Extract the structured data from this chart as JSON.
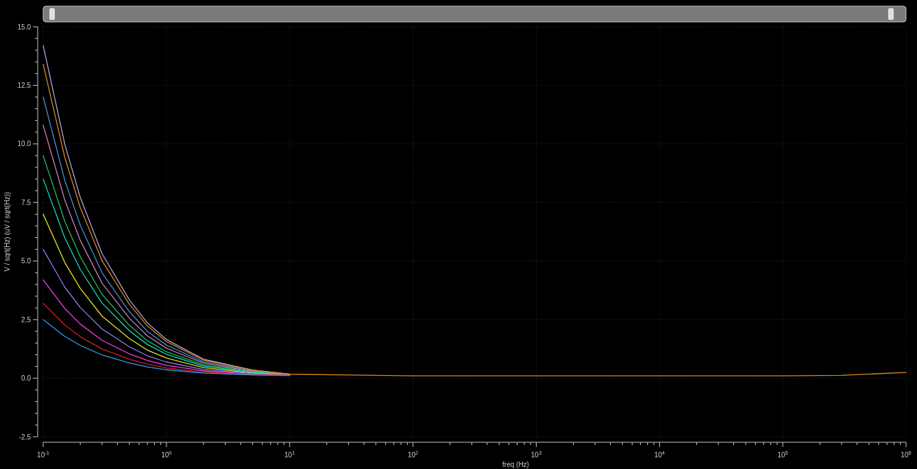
{
  "chart_data": {
    "type": "line",
    "xlabel": "freq (Hz)",
    "ylabel": "V / sqrt(Hz) (uV / sqrt(Hz))",
    "log": "x",
    "x": [
      0.1,
      0.15,
      0.2,
      0.3,
      0.5,
      0.7,
      1,
      2,
      5,
      10,
      100,
      100000,
      300000,
      1000000
    ],
    "xlim": [
      0.1,
      1000000
    ],
    "xticks": [
      {
        "value": 0.1,
        "label": "10$^{-1}$"
      },
      {
        "value": 1,
        "label": "10$^{0}$"
      },
      {
        "value": 10,
        "label": "10$^{1}$"
      },
      {
        "value": 100,
        "label": "10$^{2}$"
      },
      {
        "value": 1000,
        "label": "10$^{3}$"
      },
      {
        "value": 10000,
        "label": "10$^{4}$"
      },
      {
        "value": 100000,
        "label": "10$^{5}$"
      },
      {
        "value": 1000000,
        "label": "10$^{6}$"
      }
    ],
    "ylim": [
      -2.5,
      15
    ],
    "yticks": [
      {
        "value": -2.5,
        "label": "-2.5"
      },
      {
        "value": 0,
        "label": "0.0"
      },
      {
        "value": 2.5,
        "label": "2.5"
      },
      {
        "value": 5,
        "label": "5.0"
      },
      {
        "value": 7.5,
        "label": "7.5"
      },
      {
        "value": 10,
        "label": "10.0"
      },
      {
        "value": 12.5,
        "label": "12.5"
      },
      {
        "value": 15,
        "label": "15.0"
      }
    ],
    "grid": true,
    "marker": "none",
    "line_style": "solid",
    "series": [
      {
        "color": "#b0a8e0",
        "values": [
          14.2,
          9.97,
          7.71,
          5.32,
          3.34,
          2.36,
          1.65,
          0.81,
          0.35,
          0.17,
          null,
          null,
          null,
          null
        ]
      },
      {
        "color": "#4a90d0",
        "values": [
          12.0,
          8.43,
          6.53,
          4.5,
          2.84,
          2.0,
          1.41,
          0.7,
          0.31,
          0.16,
          null,
          null,
          null,
          null
        ]
      },
      {
        "color": "#d080c0",
        "values": [
          10.8,
          7.59,
          5.88,
          4.06,
          2.56,
          1.81,
          1.28,
          0.64,
          0.29,
          0.15,
          null,
          null,
          null,
          null
        ]
      },
      {
        "color": "#20c060",
        "values": [
          9.5,
          6.68,
          5.18,
          3.58,
          2.26,
          1.6,
          1.13,
          0.57,
          0.27,
          0.15,
          null,
          null,
          null,
          null
        ]
      },
      {
        "color": "#10e0c0",
        "values": [
          8.5,
          5.98,
          4.64,
          3.21,
          2.03,
          1.44,
          1.02,
          0.52,
          0.25,
          0.14,
          null,
          null,
          null,
          null
        ]
      },
      {
        "color": "#e8e820",
        "values": [
          7.0,
          4.93,
          3.83,
          2.65,
          1.69,
          1.2,
          0.86,
          0.45,
          0.22,
          0.13,
          null,
          null,
          null,
          null
        ]
      },
      {
        "color": "#9080f0",
        "values": [
          5.5,
          3.88,
          3.02,
          2.1,
          1.34,
          0.96,
          0.69,
          0.37,
          0.2,
          0.13,
          null,
          null,
          null,
          null
        ]
      },
      {
        "color": "#f040f0",
        "values": [
          4.2,
          2.97,
          2.31,
          1.62,
          1.04,
          0.76,
          0.55,
          0.31,
          0.17,
          0.12,
          null,
          null,
          null,
          null
        ]
      },
      {
        "color": "#d02020",
        "values": [
          3.2,
          2.27,
          1.77,
          1.25,
          0.81,
          0.6,
          0.44,
          0.26,
          0.16,
          0.12,
          null,
          null,
          null,
          null
        ]
      },
      {
        "color": "#30a0f0",
        "values": [
          2.5,
          1.78,
          1.4,
          0.99,
          0.65,
          0.48,
          0.36,
          0.22,
          0.14,
          0.11,
          null,
          null,
          null,
          null
        ]
      },
      {
        "color": "#e08a1e",
        "values": [
          13.4,
          9.41,
          7.28,
          5.02,
          3.16,
          2.23,
          1.56,
          0.77,
          0.34,
          0.17,
          0.1,
          0.1,
          0.12,
          0.25
        ]
      }
    ]
  }
}
